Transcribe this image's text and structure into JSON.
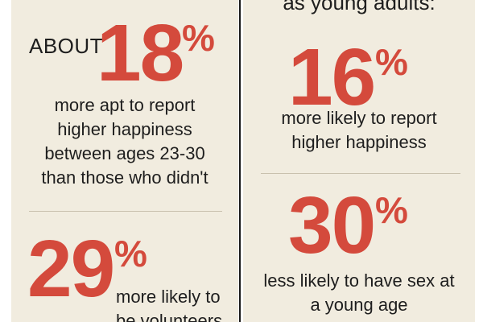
{
  "left": {
    "stat1": {
      "prefix": "ABOUT",
      "number": "18",
      "percent": "%",
      "caption": [
        "more apt to report",
        "higher happiness",
        "between ages 23-30",
        "than those who didn't"
      ]
    },
    "stat2": {
      "number": "29",
      "percent": "%",
      "caption": [
        "more likely to",
        "be volunteers"
      ]
    }
  },
  "right": {
    "top_text": "as young adults:",
    "stat1": {
      "number": "16",
      "percent": "%",
      "caption": [
        "more likely to report",
        "higher happiness"
      ]
    },
    "stat2": {
      "number": "30",
      "percent": "%",
      "caption": [
        "less likely to have sex at",
        "a young age"
      ]
    }
  },
  "colors": {
    "accent": "#d44a3c",
    "background": "#f1ecdf",
    "text": "#1e1e1e",
    "divider": "#1a1a1a"
  }
}
